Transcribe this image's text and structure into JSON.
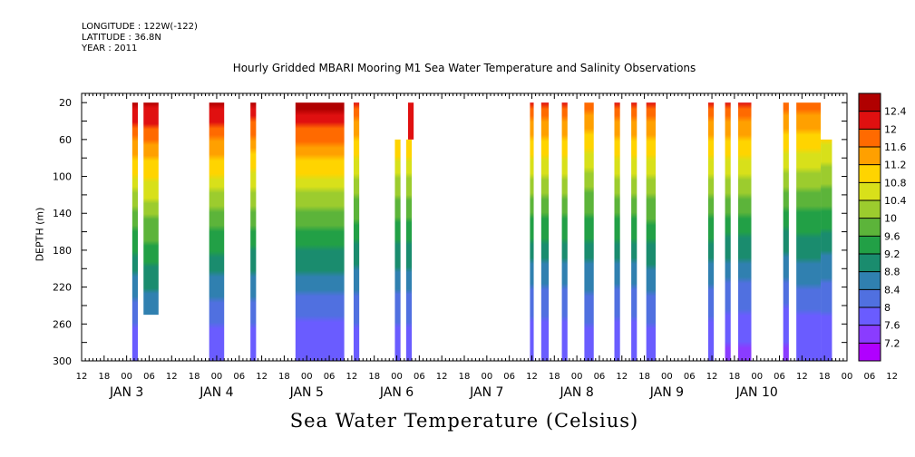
{
  "header": {
    "longitude": "LONGITUDE : 122W(-122)",
    "latitude": "LATITUDE : 36.8N",
    "year": "YEAR : 2011"
  },
  "chart_data": {
    "type": "heatmap",
    "title": "Hourly Gridded MBARI Mooring M1 Sea Water Temperature and Salinity Observations",
    "xlabel": "",
    "ylabel": "DEPTH (m)",
    "colorbar_title": "Sea Water Temperature (Celsius)",
    "ylim": [
      0,
      300
    ],
    "y_reversed": true,
    "y_ticks": [
      20,
      60,
      100,
      140,
      180,
      220,
      260,
      300
    ],
    "xlim": [
      -12,
      192
    ],
    "x_axis_unit": "hours since 00:00 JAN 3 2011",
    "x_tick_labels": [
      "12",
      "18",
      "00",
      "06",
      "12",
      "18",
      "00",
      "06",
      "12",
      "18",
      "00",
      "06",
      "12",
      "18",
      "00",
      "06",
      "12",
      "18",
      "00",
      "06",
      "12",
      "18",
      "00",
      "06",
      "12",
      "18",
      "00",
      "06",
      "12",
      "18",
      "00",
      "06",
      "12",
      "18",
      "00",
      "06",
      "12"
    ],
    "x_day_labels": [
      {
        "text": "JAN  3",
        "hour": 0
      },
      {
        "text": "JAN  4",
        "hour": 24
      },
      {
        "text": "JAN  5",
        "hour": 48
      },
      {
        "text": "JAN  6",
        "hour": 72
      },
      {
        "text": "JAN  7",
        "hour": 96
      },
      {
        "text": "JAN  8",
        "hour": 120
      },
      {
        "text": "JAN  9",
        "hour": 144
      },
      {
        "text": "JAN 10",
        "hour": 168
      }
    ],
    "colorbar_levels": [
      7.2,
      7.6,
      8,
      8.4,
      8.8,
      9.2,
      9.6,
      10,
      10.4,
      10.8,
      11.2,
      11.6,
      12,
      12.4
    ],
    "colorbar_colors": [
      "#b000ff",
      "#8a3cff",
      "#6a5cff",
      "#5070e0",
      "#3080b0",
      "#1a8c6e",
      "#22a046",
      "#5cb43a",
      "#9ccc2e",
      "#d8e01a",
      "#ffd400",
      "#ffa000",
      "#ff6a00",
      "#e01010",
      "#b00000"
    ],
    "segments": [
      {
        "x0": 1.5,
        "x1": 3,
        "depth_top": 20,
        "depth_bottom": 300,
        "temp_surface": 12.5,
        "temp_bottom": 7.7
      },
      {
        "x0": 4.5,
        "x1": 8.5,
        "depth_top": 20,
        "depth_bottom": 250,
        "temp_surface": 12.5,
        "temp_bottom": 8.0
      },
      {
        "x0": 22,
        "x1": 26,
        "depth_top": 20,
        "depth_bottom": 300,
        "temp_surface": 12.5,
        "temp_bottom": 7.7
      },
      {
        "x0": 33,
        "x1": 34.5,
        "depth_top": 20,
        "depth_bottom": 300,
        "temp_surface": 12.4,
        "temp_bottom": 7.7
      },
      {
        "x0": 45,
        "x1": 58,
        "depth_top": 20,
        "depth_bottom": 300,
        "temp_surface": 12.6,
        "temp_bottom": 7.6
      },
      {
        "x0": 60.5,
        "x1": 62,
        "depth_top": 20,
        "depth_bottom": 300,
        "temp_surface": 12.0,
        "temp_bottom": 7.7
      },
      {
        "x0": 71.5,
        "x1": 73,
        "depth_top": 60,
        "depth_bottom": 300,
        "temp_surface": 12.0,
        "temp_bottom": 7.7
      },
      {
        "x0": 74.5,
        "x1": 76,
        "depth_top": 60,
        "depth_bottom": 300,
        "temp_surface": 12.0,
        "temp_bottom": 7.7
      },
      {
        "x0": 75,
        "x1": 76.5,
        "depth_top": 20,
        "depth_bottom": 60,
        "temp_surface": 12.3,
        "temp_bottom": 12.0
      },
      {
        "x0": 107.5,
        "x1": 108.5,
        "depth_top": 20,
        "depth_bottom": 300,
        "temp_surface": 12.0,
        "temp_bottom": 7.6
      },
      {
        "x0": 110.5,
        "x1": 112.5,
        "depth_top": 20,
        "depth_bottom": 300,
        "temp_surface": 12.0,
        "temp_bottom": 7.6
      },
      {
        "x0": 116,
        "x1": 117.5,
        "depth_top": 20,
        "depth_bottom": 300,
        "temp_surface": 12.0,
        "temp_bottom": 7.6
      },
      {
        "x0": 122,
        "x1": 124.5,
        "depth_top": 20,
        "depth_bottom": 300,
        "temp_surface": 11.8,
        "temp_bottom": 7.7
      },
      {
        "x0": 130,
        "x1": 131.5,
        "depth_top": 20,
        "depth_bottom": 300,
        "temp_surface": 12.0,
        "temp_bottom": 7.6
      },
      {
        "x0": 134.5,
        "x1": 136,
        "depth_top": 20,
        "depth_bottom": 300,
        "temp_surface": 12.0,
        "temp_bottom": 7.6
      },
      {
        "x0": 138.5,
        "x1": 141,
        "depth_top": 20,
        "depth_bottom": 300,
        "temp_surface": 12.0,
        "temp_bottom": 7.7
      },
      {
        "x0": 155,
        "x1": 156.5,
        "depth_top": 20,
        "depth_bottom": 300,
        "temp_surface": 12.0,
        "temp_bottom": 7.6
      },
      {
        "x0": 159.5,
        "x1": 161,
        "depth_top": 20,
        "depth_bottom": 300,
        "temp_surface": 12.0,
        "temp_bottom": 7.5
      },
      {
        "x0": 163,
        "x1": 166.5,
        "depth_top": 20,
        "depth_bottom": 300,
        "temp_surface": 12.0,
        "temp_bottom": 7.5
      },
      {
        "x0": 175,
        "x1": 176.5,
        "depth_top": 20,
        "depth_bottom": 300,
        "temp_surface": 11.8,
        "temp_bottom": 7.5
      },
      {
        "x0": 178.5,
        "x1": 185,
        "depth_top": 20,
        "depth_bottom": 300,
        "temp_surface": 11.8,
        "temp_bottom": 7.6
      },
      {
        "x0": 185,
        "x1": 188,
        "depth_top": 60,
        "depth_bottom": 300,
        "temp_surface": 11.6,
        "temp_bottom": 7.6
      }
    ]
  }
}
